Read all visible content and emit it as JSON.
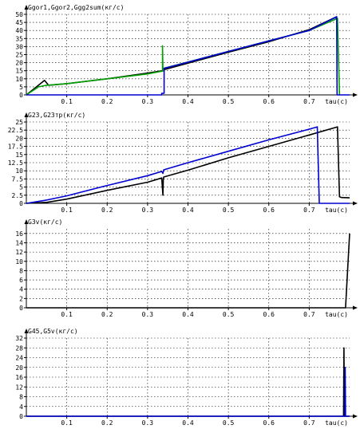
{
  "chart_data": [
    {
      "type": "line",
      "title": "Ggor1,Ggor2,Ggg2sum(кг/с)",
      "xlabel": "tau(c)",
      "xlim": [
        0,
        0.8
      ],
      "ylim": [
        0,
        50
      ],
      "xticks": [
        "0.1",
        "0.2",
        "0.3",
        "0.4",
        "0.5",
        "0.6",
        "0.7"
      ],
      "yticks": [
        "0",
        "5",
        "10",
        "15",
        "20",
        "25",
        "30",
        "35",
        "40",
        "45",
        "50"
      ],
      "grid": true,
      "series": [
        {
          "color": "#000000",
          "x": [
            0,
            0.03,
            0.045,
            0.055,
            0.1,
            0.2,
            0.3,
            0.337,
            0.34,
            0.5,
            0.6,
            0.7,
            0.768
          ],
          "y": [
            0,
            6,
            9,
            6,
            7,
            10,
            13.5,
            15,
            15.6,
            26.5,
            33,
            40.5,
            48.5
          ]
        },
        {
          "color": "#00a000",
          "x": [
            0,
            0.03,
            0.05,
            0.1,
            0.2,
            0.3,
            0.337,
            0.337,
            0.338,
            0.34,
            0.5,
            0.6,
            0.7,
            0.765,
            0.766,
            0.77,
            0.775
          ],
          "y": [
            0,
            5,
            6,
            7,
            10,
            13,
            14.8,
            30.5,
            14.8,
            16.5,
            27,
            33.5,
            40,
            47,
            48,
            47.5,
            0
          ]
        },
        {
          "color": "#0000d0",
          "x": [
            0,
            0.3,
            0.335,
            0.335,
            0.34,
            0.341,
            0.341,
            0.38,
            0.5,
            0.6,
            0.7,
            0.768,
            0.769,
            0.8
          ],
          "y": [
            0,
            0,
            0,
            1,
            1,
            1,
            16.5,
            19,
            27,
            33.5,
            40,
            48.5,
            0,
            0
          ]
        }
      ]
    },
    {
      "type": "line",
      "title": "G23,G23тр(кг/с)",
      "xlabel": "tau(c)",
      "xlim": [
        0,
        0.8
      ],
      "ylim": [
        0,
        25
      ],
      "xticks": [
        "0.1",
        "0.2",
        "0.3",
        "0.4",
        "0.5",
        "0.6",
        "0.7"
      ],
      "yticks": [
        "0",
        "2.5",
        "5",
        "7.5",
        "10",
        "12.5",
        "15",
        "17.5",
        "20",
        "22.5",
        "25"
      ],
      "grid": true,
      "series": [
        {
          "color": "#000000",
          "x": [
            0,
            0.05,
            0.1,
            0.2,
            0.3,
            0.335,
            0.338,
            0.339,
            0.34,
            0.4,
            0.5,
            0.6,
            0.7,
            0.77,
            0.775,
            0.78,
            0.8
          ],
          "y": [
            0,
            0.3,
            1.3,
            4,
            6.5,
            7.8,
            2.5,
            7.5,
            8.1,
            10.2,
            14,
            17.5,
            21,
            23.5,
            2,
            1.8,
            1.7
          ]
        },
        {
          "color": "#0000d0",
          "x": [
            0,
            0.05,
            0.1,
            0.2,
            0.3,
            0.335,
            0.338,
            0.34,
            0.4,
            0.5,
            0.6,
            0.7,
            0.72,
            0.725,
            0.8
          ],
          "y": [
            0,
            1,
            2.3,
            5.5,
            8.5,
            9.8,
            9.2,
            10.3,
            12.5,
            16,
            19.5,
            22.8,
            23.5,
            0,
            0
          ]
        }
      ]
    },
    {
      "type": "line",
      "title": "G3v(кг/с)",
      "xlabel": "tau(c)",
      "xlim": [
        0,
        0.8
      ],
      "ylim": [
        0,
        17
      ],
      "xticks": [
        "0.1",
        "0.2",
        "0.3",
        "0.4",
        "0.5",
        "0.6",
        "0.7"
      ],
      "yticks": [
        "0",
        "2",
        "4",
        "6",
        "8",
        "10",
        "12",
        "14",
        "16"
      ],
      "grid": true,
      "series": [
        {
          "color": "#000000",
          "x": [
            0,
            0.79,
            0.8
          ],
          "y": [
            0,
            0,
            16
          ]
        }
      ]
    },
    {
      "type": "line",
      "title": "G45,G5v(кг/с)",
      "xlabel": "tau(c)",
      "xlim": [
        0,
        0.8
      ],
      "ylim": [
        0,
        32
      ],
      "xticks": [
        "0.1",
        "0.2",
        "0.3",
        "0.4",
        "0.5",
        "0.6",
        "0.7"
      ],
      "yticks": [
        "0",
        "4",
        "8",
        "12",
        "16",
        "20",
        "24",
        "28",
        "32"
      ],
      "grid": true,
      "series": [
        {
          "color": "#000000",
          "x": [
            0,
            0.785,
            0.786,
            0.787,
            0.8
          ],
          "y": [
            0,
            0,
            28,
            0,
            0
          ]
        },
        {
          "color": "#0000d0",
          "x": [
            0,
            0.788,
            0.789,
            0.79,
            0.8
          ],
          "y": [
            0,
            0,
            20,
            0,
            0
          ]
        }
      ]
    }
  ]
}
